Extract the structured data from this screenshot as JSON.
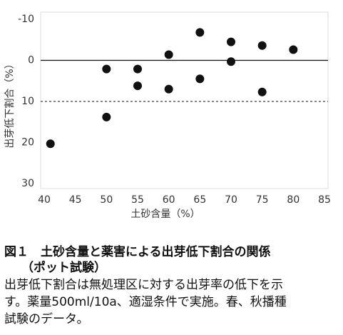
{
  "chart_data": {
    "type": "scatter",
    "xlabel": "土砂含量（%）",
    "ylabel": "出芽低下割合（%）",
    "x": [
      41,
      50,
      50,
      55,
      55,
      60,
      60,
      65,
      65,
      70,
      70,
      75,
      75,
      80
    ],
    "values": [
      20.3,
      2.1,
      13.8,
      2.1,
      6.2,
      -1.4,
      7.0,
      -6.8,
      4.5,
      -4.5,
      0.3,
      -3.6,
      7.7,
      -2.6
    ],
    "color": "#111111",
    "xlim": [
      40,
      85
    ],
    "xticks": [
      40,
      45,
      50,
      55,
      60,
      65,
      70,
      75,
      80,
      85
    ],
    "ylim": [
      -10,
      30
    ],
    "yticks": [
      -10,
      0,
      10,
      20,
      30
    ],
    "y_inverted": true,
    "hlines": [
      {
        "value": 0,
        "style": "solid"
      },
      {
        "value": 10,
        "style": "dashed"
      }
    ]
  },
  "caption": {
    "title": "図１　土砂含量と薬害による出芽低下割合の関係",
    "subtitle": "（ポット試験）",
    "lines": [
      "出芽低下割合は無処理区に対する出芽率の低下を示",
      "す。薬量500ml/10a、適湿条件で実施。春、秋播種",
      "試験のデータ。"
    ]
  }
}
